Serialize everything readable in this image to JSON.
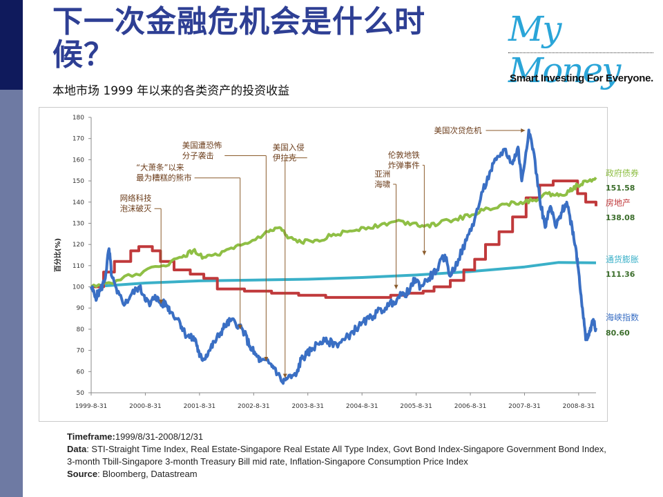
{
  "header": {
    "title": "下一次金融危机会是什么时候？",
    "subtitle": "本地市场 1999 年以来的各类资产的投资收益"
  },
  "logo": {
    "main": "My Money",
    "tagline": "Smart Investing For Everyone."
  },
  "colors": {
    "sidebar_dark": "#0f1a5c",
    "sidebar_light": "#6e7aa3",
    "title": "#2e3f94",
    "sti": "#3a6fc4",
    "real_estate": "#c0393b",
    "govt_bond": "#8fbf45",
    "inflation": "#3ab0c8",
    "annotation": "#8a5a2a"
  },
  "chart_data": {
    "type": "line",
    "ylabel": "百分比(%)",
    "ylim": [
      50,
      180
    ],
    "yticks": [
      50,
      60,
      70,
      80,
      90,
      100,
      110,
      120,
      130,
      140,
      150,
      160,
      170,
      180
    ],
    "xlim": [
      1999.67,
      2008.99
    ],
    "xticks": [
      {
        "x": 1999.67,
        "label": "1999-8-31"
      },
      {
        "x": 2000.67,
        "label": "2000-8-31"
      },
      {
        "x": 2001.67,
        "label": "2001-8-31"
      },
      {
        "x": 2002.67,
        "label": "2002-8-31"
      },
      {
        "x": 2003.67,
        "label": "2003-8-31"
      },
      {
        "x": 2004.67,
        "label": "2004-8-31"
      },
      {
        "x": 2005.67,
        "label": "2005-8-31"
      },
      {
        "x": 2006.67,
        "label": "2006-8-31"
      },
      {
        "x": 2007.67,
        "label": "2007-8-31"
      },
      {
        "x": 2008.67,
        "label": "2008-8-31"
      }
    ],
    "series": [
      {
        "name": "海峡指数",
        "value_label": "80.60",
        "color": "#3a6fc4",
        "width": 4,
        "jitter": 1.6,
        "points": [
          [
            1999.67,
            100
          ],
          [
            1999.75,
            95
          ],
          [
            1999.83,
            98
          ],
          [
            1999.92,
            103
          ],
          [
            2000.0,
            118
          ],
          [
            2000.05,
            105
          ],
          [
            2000.15,
            97
          ],
          [
            2000.3,
            92
          ],
          [
            2000.4,
            96
          ],
          [
            2000.55,
            100
          ],
          [
            2000.65,
            96
          ],
          [
            2000.75,
            91
          ],
          [
            2000.85,
            96
          ],
          [
            2000.95,
            92
          ],
          [
            2001.05,
            92
          ],
          [
            2001.15,
            88
          ],
          [
            2001.3,
            84
          ],
          [
            2001.4,
            78
          ],
          [
            2001.5,
            76
          ],
          [
            2001.6,
            75
          ],
          [
            2001.67,
            67
          ],
          [
            2001.75,
            66
          ],
          [
            2001.85,
            70
          ],
          [
            2001.95,
            74
          ],
          [
            2002.05,
            78
          ],
          [
            2002.15,
            82
          ],
          [
            2002.25,
            84
          ],
          [
            2002.4,
            82
          ],
          [
            2002.5,
            78
          ],
          [
            2002.6,
            72
          ],
          [
            2002.7,
            68
          ],
          [
            2002.8,
            65
          ],
          [
            2002.95,
            64
          ],
          [
            2003.05,
            62
          ],
          [
            2003.2,
            55
          ],
          [
            2003.3,
            57
          ],
          [
            2003.45,
            58
          ],
          [
            2003.55,
            66
          ],
          [
            2003.65,
            68
          ],
          [
            2003.75,
            71
          ],
          [
            2003.9,
            74
          ],
          [
            2004.05,
            74
          ],
          [
            2004.2,
            73
          ],
          [
            2004.35,
            75
          ],
          [
            2004.5,
            79
          ],
          [
            2004.65,
            82
          ],
          [
            2004.8,
            85
          ],
          [
            2004.95,
            88
          ],
          [
            2005.1,
            90
          ],
          [
            2005.25,
            93
          ],
          [
            2005.4,
            96
          ],
          [
            2005.55,
            98
          ],
          [
            2005.65,
            104
          ],
          [
            2005.75,
            100
          ],
          [
            2005.9,
            104
          ],
          [
            2006.05,
            108
          ],
          [
            2006.2,
            115
          ],
          [
            2006.3,
            105
          ],
          [
            2006.45,
            113
          ],
          [
            2006.6,
            122
          ],
          [
            2006.75,
            132
          ],
          [
            2006.9,
            145
          ],
          [
            2007.05,
            155
          ],
          [
            2007.15,
            160
          ],
          [
            2007.3,
            165
          ],
          [
            2007.45,
            158
          ],
          [
            2007.55,
            166
          ],
          [
            2007.62,
            150
          ],
          [
            2007.75,
            174
          ],
          [
            2007.83,
            165
          ],
          [
            2007.95,
            142
          ],
          [
            2008.05,
            128
          ],
          [
            2008.15,
            138
          ],
          [
            2008.25,
            128
          ],
          [
            2008.35,
            135
          ],
          [
            2008.45,
            140
          ],
          [
            2008.55,
            128
          ],
          [
            2008.62,
            118
          ],
          [
            2008.68,
            105
          ],
          [
            2008.74,
            90
          ],
          [
            2008.8,
            75
          ],
          [
            2008.86,
            77
          ],
          [
            2008.92,
            84
          ],
          [
            2008.99,
            80.6
          ]
        ]
      },
      {
        "name": "房地产",
        "value_label": "138.08",
        "color": "#c0393b",
        "width": 4,
        "step": true,
        "points": [
          [
            1999.67,
            100
          ],
          [
            1999.9,
            107
          ],
          [
            2000.1,
            112
          ],
          [
            2000.4,
            117
          ],
          [
            2000.55,
            119
          ],
          [
            2000.8,
            117
          ],
          [
            2000.95,
            112
          ],
          [
            2001.2,
            108
          ],
          [
            2001.5,
            106
          ],
          [
            2001.75,
            104
          ],
          [
            2002.0,
            99
          ],
          [
            2002.5,
            98
          ],
          [
            2003.0,
            97
          ],
          [
            2003.5,
            96
          ],
          [
            2004.0,
            95
          ],
          [
            2004.6,
            95
          ],
          [
            2005.0,
            95
          ],
          [
            2005.2,
            96
          ],
          [
            2005.5,
            97
          ],
          [
            2005.8,
            98
          ],
          [
            2006.0,
            100
          ],
          [
            2006.3,
            103
          ],
          [
            2006.55,
            108
          ],
          [
            2006.75,
            113
          ],
          [
            2006.95,
            120
          ],
          [
            2007.2,
            126
          ],
          [
            2007.45,
            133
          ],
          [
            2007.7,
            142
          ],
          [
            2007.95,
            148
          ],
          [
            2008.2,
            150
          ],
          [
            2008.55,
            150
          ],
          [
            2008.65,
            144
          ],
          [
            2008.8,
            140
          ],
          [
            2008.99,
            138.08
          ]
        ]
      },
      {
        "name": "政府债券",
        "value_label": "151.58",
        "color": "#8fbf45",
        "width": 4,
        "jitter": 0.9,
        "points": [
          [
            1999.67,
            100
          ],
          [
            2000.0,
            102
          ],
          [
            2000.5,
            106
          ],
          [
            2001.0,
            110
          ],
          [
            2001.35,
            114
          ],
          [
            2001.55,
            117
          ],
          [
            2001.75,
            114
          ],
          [
            2002.0,
            115
          ],
          [
            2002.3,
            118
          ],
          [
            2002.6,
            121
          ],
          [
            2002.95,
            126
          ],
          [
            2003.15,
            128
          ],
          [
            2003.3,
            123
          ],
          [
            2003.55,
            121
          ],
          [
            2003.8,
            122
          ],
          [
            2004.1,
            124
          ],
          [
            2004.4,
            126
          ],
          [
            2004.7,
            128
          ],
          [
            2005.0,
            129
          ],
          [
            2005.3,
            131
          ],
          [
            2005.6,
            130
          ],
          [
            2005.85,
            129
          ],
          [
            2006.1,
            130
          ],
          [
            2006.4,
            132
          ],
          [
            2006.7,
            134
          ],
          [
            2007.0,
            137
          ],
          [
            2007.3,
            139
          ],
          [
            2007.6,
            140
          ],
          [
            2007.85,
            141
          ],
          [
            2008.1,
            144
          ],
          [
            2008.3,
            143
          ],
          [
            2008.5,
            145
          ],
          [
            2008.65,
            148
          ],
          [
            2008.8,
            150
          ],
          [
            2008.99,
            151.58
          ]
        ]
      },
      {
        "name": "通货膨胀",
        "value_label": "111.36",
        "color": "#3ab0c8",
        "width": 4,
        "points": [
          [
            1999.67,
            100
          ],
          [
            2000.67,
            101.8
          ],
          [
            2001.67,
            102.8
          ],
          [
            2002.67,
            103.2
          ],
          [
            2003.67,
            103.6
          ],
          [
            2004.67,
            104.4
          ],
          [
            2005.67,
            105.6
          ],
          [
            2006.67,
            107.2
          ],
          [
            2007.67,
            109.4
          ],
          [
            2008.3,
            111.5
          ],
          [
            2008.99,
            111.36
          ]
        ]
      }
    ],
    "annotations": [
      {
        "lines": [
          "美国次贷危机"
        ],
        "label_x": 2006.0,
        "label_y": 172.5,
        "target_x": 2007.68,
        "target_y": 172,
        "arrow": "right"
      },
      {
        "lines": [
          "美国遭恐怖",
          "分子袭击"
        ],
        "label_x": 2001.35,
        "label_y": 165.5,
        "target_x": 2002.9,
        "target_y": 65,
        "arrow": "down"
      },
      {
        "lines": [
          "美国入侵",
          "伊拉克"
        ],
        "label_x": 2003.02,
        "label_y": 164.5,
        "target_x": 2003.25,
        "target_y": 57,
        "arrow": "down"
      },
      {
        "lines": [
          "伦敦地铁",
          "炸弹事件"
        ],
        "label_x": 2005.15,
        "label_y": 161,
        "target_x": 2005.82,
        "target_y": 115,
        "arrow": "down"
      },
      {
        "lines": [
          "“大萧条”以来",
          "最为糟糕的熊市"
        ],
        "label_x": 2000.5,
        "label_y": 155,
        "target_x": 2002.42,
        "target_y": 80,
        "arrow": "down"
      },
      {
        "lines": [
          "亚洲",
          "海啸"
        ],
        "label_x": 2004.9,
        "label_y": 152,
        "target_x": 2005.3,
        "target_y": 99,
        "arrow": "down"
      },
      {
        "lines": [
          "网络科技",
          "泡沫破灭"
        ],
        "label_x": 2000.2,
        "label_y": 140.5,
        "target_x": 2000.96,
        "target_y": 92,
        "arrow": "down"
      }
    ]
  },
  "footer": {
    "timeframe_label": "Timeframe:",
    "timeframe_value": "1999/8/31-2008/12/31",
    "data_label": "Data",
    "data_value": ": STI-Straight Time Index, Real Estate-Singapore Real Estate All Type Index, Govt Bond Index-Singapore Government Bond Index, 3-month Tbill-Singapore 3-month Treasury Bill mid rate,  Inflation-Singapore Consumption Price Index",
    "source_label": "Source",
    "source_value": ": Bloomberg, Datastream"
  }
}
